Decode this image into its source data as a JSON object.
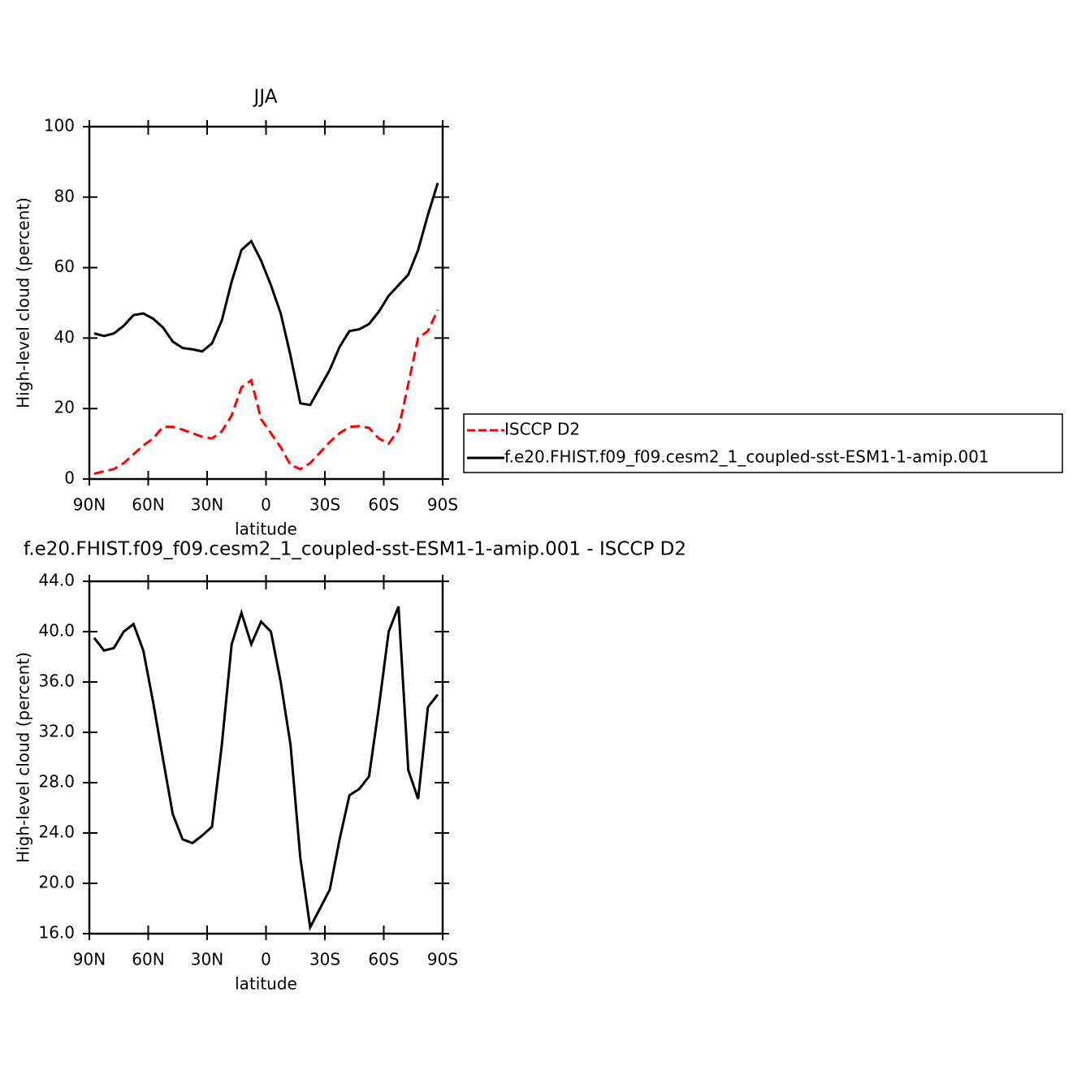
{
  "chart_data": [
    {
      "type": "line",
      "title": "JJA",
      "xlabel": "latitude",
      "ylabel": "High-level cloud (percent)",
      "x": [
        87.5,
        82.5,
        77.5,
        72.5,
        67.5,
        62.5,
        57.5,
        52.5,
        47.5,
        42.5,
        37.5,
        32.5,
        27.5,
        22.5,
        17.5,
        12.5,
        7.5,
        2.5,
        -2.5,
        -7.5,
        -12.5,
        -17.5,
        -22.5,
        -27.5,
        -32.5,
        -37.5,
        -42.5,
        -47.5,
        -52.5,
        -57.5,
        -62.5,
        -67.5,
        -72.5,
        -77.5,
        -82.5,
        -87.5
      ],
      "xlim": [
        90,
        -90
      ],
      "xticks": [
        {
          "value": 90,
          "label": "90N"
        },
        {
          "value": 60,
          "label": "60N"
        },
        {
          "value": 30,
          "label": "30N"
        },
        0,
        {
          "value": -30,
          "label": "30S"
        },
        {
          "value": -60,
          "label": "60S"
        },
        {
          "value": -90,
          "label": "90S"
        }
      ],
      "ylim": [
        0,
        100
      ],
      "yticks": [
        0,
        20,
        40,
        60,
        80,
        100
      ],
      "legend": "right",
      "series": [
        {
          "name": "ISCCP D2",
          "color": "#ff0000",
          "line_style": "dashed",
          "values": [
            1.5,
            2.2,
            2.8,
            4.5,
            7,
            9.5,
            11.5,
            14.8,
            14.8,
            14,
            13,
            12,
            11.5,
            13.5,
            18,
            26,
            28,
            17,
            13,
            9,
            4,
            2.8,
            4.5,
            7.5,
            10.5,
            13,
            14.8,
            15,
            14.5,
            11.5,
            10,
            14,
            27,
            40,
            42,
            48
          ]
        },
        {
          "name": "f.e20.FHIST.f09_f09.cesm2_1_coupled-sst-ESM1-1-amip.001",
          "color": "#000000",
          "line_style": "solid",
          "values": [
            41.3,
            40.6,
            41.3,
            43.5,
            46.5,
            47,
            45.5,
            43,
            39,
            37.2,
            36.8,
            36.2,
            38.5,
            45,
            56,
            65,
            67.5,
            62,
            55,
            47,
            35,
            21.5,
            21,
            26,
            31,
            37.5,
            42,
            42.5,
            44,
            47.5,
            52,
            55,
            58,
            65,
            75,
            84
          ]
        }
      ]
    },
    {
      "type": "line",
      "title": "f.e20.FHIST.f09_f09.cesm2_1_coupled-sst-ESM1-1-amip.001 - ISCCP D2",
      "xlabel": "latitude",
      "ylabel": "High-level cloud (percent)",
      "x": [
        87.5,
        82.5,
        77.5,
        72.5,
        67.5,
        62.5,
        57.5,
        52.5,
        47.5,
        42.5,
        37.5,
        32.5,
        27.5,
        22.5,
        17.5,
        12.5,
        7.5,
        2.5,
        -2.5,
        -7.5,
        -12.5,
        -17.5,
        -22.5,
        -27.5,
        -32.5,
        -37.5,
        -42.5,
        -47.5,
        -52.5,
        -57.5,
        -62.5,
        -67.5,
        -72.5,
        -77.5,
        -82.5,
        -87.5
      ],
      "xlim": [
        90,
        -90
      ],
      "xticks": [
        {
          "value": 90,
          "label": "90N"
        },
        {
          "value": 60,
          "label": "60N"
        },
        {
          "value": 30,
          "label": "30N"
        },
        0,
        {
          "value": -30,
          "label": "30S"
        },
        {
          "value": -60,
          "label": "60S"
        },
        {
          "value": -90,
          "label": "90S"
        }
      ],
      "ylim": [
        16,
        44
      ],
      "yticks": [
        {
          "value": 16,
          "label": "16.0"
        },
        {
          "value": 20,
          "label": "20.0"
        },
        {
          "value": 24,
          "label": "24.0"
        },
        {
          "value": 28,
          "label": "28.0"
        },
        {
          "value": 32,
          "label": "32.0"
        },
        {
          "value": 36,
          "label": "36.0"
        },
        {
          "value": 40,
          "label": "40.0"
        },
        {
          "value": 44,
          "label": "44.0"
        }
      ],
      "series": [
        {
          "color": "#000000",
          "line_style": "solid",
          "values": [
            39.5,
            38.5,
            38.7,
            40,
            40.6,
            38.5,
            34.4,
            29.9,
            25.5,
            23.5,
            23.2,
            23.8,
            24.5,
            31,
            39,
            41.5,
            39,
            40.8,
            40,
            36,
            31,
            22,
            16.5,
            18,
            19.5,
            23.5,
            27,
            27.5,
            28.5,
            34,
            40,
            42,
            29,
            26.7,
            34,
            35
          ]
        }
      ]
    }
  ]
}
